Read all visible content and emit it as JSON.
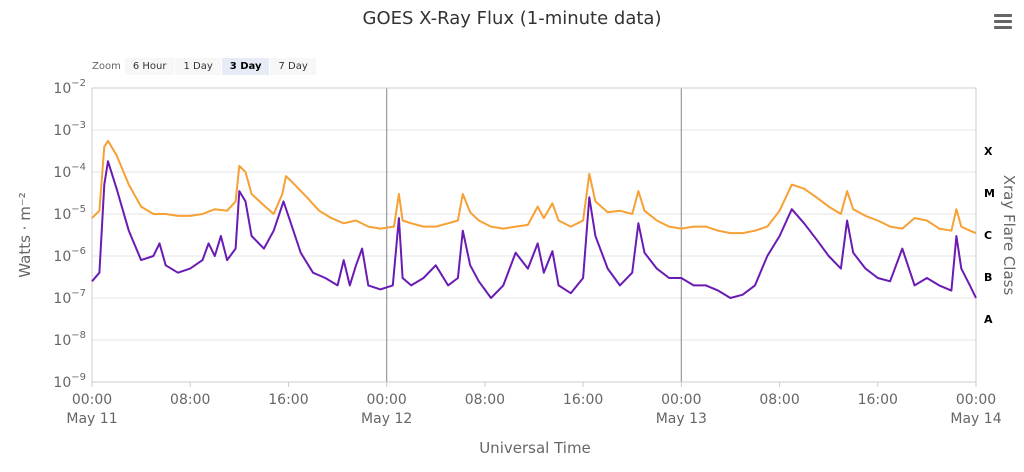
{
  "chart_data": {
    "type": "line",
    "title": "GOES X-Ray Flux (1-minute data)",
    "xlabel": "Universal Time",
    "ylabel": "Watts · m⁻²",
    "y2label": "Xray Flare Class",
    "yscale": "log",
    "ylim": [
      1e-09,
      0.01
    ],
    "xlim_hours": [
      0,
      72
    ],
    "x_ticks": [
      {
        "h": 0,
        "line1": "00:00",
        "line2": "May 11"
      },
      {
        "h": 8,
        "line1": "08:00",
        "line2": ""
      },
      {
        "h": 16,
        "line1": "16:00",
        "line2": ""
      },
      {
        "h": 24,
        "line1": "00:00",
        "line2": "May 12"
      },
      {
        "h": 32,
        "line1": "08:00",
        "line2": ""
      },
      {
        "h": 40,
        "line1": "16:00",
        "line2": ""
      },
      {
        "h": 48,
        "line1": "00:00",
        "line2": "May 13"
      },
      {
        "h": 56,
        "line1": "08:00",
        "line2": ""
      },
      {
        "h": 64,
        "line1": "16:00",
        "line2": ""
      },
      {
        "h": 72,
        "line1": "00:00",
        "line2": "May 14"
      }
    ],
    "y_ticks": [
      {
        "exp": -9,
        "label": "10",
        "sup": "−9"
      },
      {
        "exp": -8,
        "label": "10",
        "sup": "−8"
      },
      {
        "exp": -7,
        "label": "10",
        "sup": "−7"
      },
      {
        "exp": -6,
        "label": "10",
        "sup": "−6"
      },
      {
        "exp": -5,
        "label": "10",
        "sup": "−5"
      },
      {
        "exp": -4,
        "label": "10",
        "sup": "−4"
      },
      {
        "exp": -3,
        "label": "10",
        "sup": "−3"
      },
      {
        "exp": -2,
        "label": "10",
        "sup": "−2"
      }
    ],
    "flare_classes": [
      {
        "label": "X",
        "exp": -4
      },
      {
        "label": "M",
        "exp": -5
      },
      {
        "label": "C",
        "exp": -6
      },
      {
        "label": "B",
        "exp": -7
      },
      {
        "label": "A",
        "exp": -8
      }
    ],
    "series": [
      {
        "color": "#f7a035",
        "points": [
          [
            0,
            8e-06
          ],
          [
            0.6,
            1.2e-05
          ],
          [
            1,
            0.0004
          ],
          [
            1.3,
            0.00055
          ],
          [
            2,
            0.00025
          ],
          [
            3,
            5e-05
          ],
          [
            4,
            1.5e-05
          ],
          [
            5,
            1e-05
          ],
          [
            6,
            1e-05
          ],
          [
            7,
            9e-06
          ],
          [
            8,
            9e-06
          ],
          [
            9,
            1e-05
          ],
          [
            10,
            1.3e-05
          ],
          [
            11,
            1.2e-05
          ],
          [
            11.7,
            2e-05
          ],
          [
            12,
            0.00014
          ],
          [
            12.5,
            0.0001
          ],
          [
            13,
            3e-05
          ],
          [
            14,
            1.6e-05
          ],
          [
            14.8,
            1e-05
          ],
          [
            15.5,
            3e-05
          ],
          [
            15.8,
            8e-05
          ],
          [
            16.5,
            5e-05
          ],
          [
            17.5,
            2.5e-05
          ],
          [
            18.5,
            1.2e-05
          ],
          [
            19.5,
            8e-06
          ],
          [
            20.5,
            6e-06
          ],
          [
            21.5,
            7e-06
          ],
          [
            22.5,
            5e-06
          ],
          [
            23.5,
            4.5e-06
          ],
          [
            24.6,
            5e-06
          ],
          [
            25,
            3e-05
          ],
          [
            25.3,
            7e-06
          ],
          [
            26,
            6e-06
          ],
          [
            27,
            5e-06
          ],
          [
            28,
            5e-06
          ],
          [
            29,
            6e-06
          ],
          [
            29.8,
            7e-06
          ],
          [
            30.2,
            3e-05
          ],
          [
            30.8,
            1.1e-05
          ],
          [
            31.5,
            7e-06
          ],
          [
            32.5,
            5e-06
          ],
          [
            33.5,
            4.5e-06
          ],
          [
            34.5,
            5e-06
          ],
          [
            35.5,
            5.5e-06
          ],
          [
            36.3,
            1.5e-05
          ],
          [
            36.8,
            8e-06
          ],
          [
            37.5,
            1.8e-05
          ],
          [
            38,
            7e-06
          ],
          [
            39,
            5e-06
          ],
          [
            40,
            7e-06
          ],
          [
            40.5,
            9e-05
          ],
          [
            41,
            2e-05
          ],
          [
            42,
            1.1e-05
          ],
          [
            43,
            1.2e-05
          ],
          [
            44,
            1e-05
          ],
          [
            44.5,
            3.5e-05
          ],
          [
            45,
            1.2e-05
          ],
          [
            46,
            7e-06
          ],
          [
            47,
            5e-06
          ],
          [
            48,
            4.5e-06
          ],
          [
            49,
            5e-06
          ],
          [
            50,
            5e-06
          ],
          [
            51,
            4e-06
          ],
          [
            52,
            3.5e-06
          ],
          [
            53,
            3.5e-06
          ],
          [
            54,
            4e-06
          ],
          [
            55,
            5e-06
          ],
          [
            56,
            1.2e-05
          ],
          [
            57,
            5e-05
          ],
          [
            58,
            4e-05
          ],
          [
            59,
            2.5e-05
          ],
          [
            60,
            1.5e-05
          ],
          [
            61,
            1e-05
          ],
          [
            61.5,
            3.5e-05
          ],
          [
            62,
            1.3e-05
          ],
          [
            63,
            9e-06
          ],
          [
            64,
            7e-06
          ],
          [
            65,
            5e-06
          ],
          [
            66,
            4.5e-06
          ],
          [
            67,
            8e-06
          ],
          [
            68,
            7e-06
          ],
          [
            69,
            4.5e-06
          ],
          [
            70,
            4e-06
          ],
          [
            70.4,
            1.3e-05
          ],
          [
            70.8,
            5e-06
          ],
          [
            71.5,
            4e-06
          ],
          [
            72,
            3.5e-06
          ]
        ]
      },
      {
        "color": "#6a1bb3",
        "points": [
          [
            0,
            2.5e-07
          ],
          [
            0.6,
            4e-07
          ],
          [
            1,
            5e-05
          ],
          [
            1.3,
            0.00018
          ],
          [
            2,
            4e-05
          ],
          [
            3,
            4e-06
          ],
          [
            4,
            8e-07
          ],
          [
            5,
            1e-06
          ],
          [
            5.5,
            2e-06
          ],
          [
            6,
            6e-07
          ],
          [
            7,
            4e-07
          ],
          [
            8,
            5e-07
          ],
          [
            9,
            8e-07
          ],
          [
            9.5,
            2e-06
          ],
          [
            10,
            1e-06
          ],
          [
            10.5,
            3e-06
          ],
          [
            11,
            8e-07
          ],
          [
            11.7,
            1.5e-06
          ],
          [
            12,
            3.5e-05
          ],
          [
            12.5,
            2e-05
          ],
          [
            13,
            3e-06
          ],
          [
            14,
            1.5e-06
          ],
          [
            14.8,
            4e-06
          ],
          [
            15.6,
            2e-05
          ],
          [
            16.2,
            6e-06
          ],
          [
            17,
            1.2e-06
          ],
          [
            18,
            4e-07
          ],
          [
            19,
            3e-07
          ],
          [
            20,
            2e-07
          ],
          [
            20.5,
            8e-07
          ],
          [
            21,
            2e-07
          ],
          [
            21.5,
            6e-07
          ],
          [
            22,
            1.5e-06
          ],
          [
            22.5,
            2e-07
          ],
          [
            23.5,
            1.6e-07
          ],
          [
            24.5,
            2e-07
          ],
          [
            25,
            8e-06
          ],
          [
            25.3,
            3e-07
          ],
          [
            26,
            2e-07
          ],
          [
            27,
            3e-07
          ],
          [
            28,
            6e-07
          ],
          [
            29,
            2e-07
          ],
          [
            29.8,
            3e-07
          ],
          [
            30.2,
            4e-06
          ],
          [
            30.8,
            6e-07
          ],
          [
            31.5,
            2.5e-07
          ],
          [
            32.5,
            1e-07
          ],
          [
            33.5,
            2e-07
          ],
          [
            34.5,
            1.2e-06
          ],
          [
            35.5,
            5e-07
          ],
          [
            36.3,
            2e-06
          ],
          [
            36.8,
            4e-07
          ],
          [
            37.5,
            1.3e-06
          ],
          [
            38,
            2e-07
          ],
          [
            39,
            1.3e-07
          ],
          [
            40,
            3e-07
          ],
          [
            40.5,
            2.5e-05
          ],
          [
            41,
            3e-06
          ],
          [
            42,
            5e-07
          ],
          [
            43,
            2e-07
          ],
          [
            44,
            4e-07
          ],
          [
            44.5,
            6e-06
          ],
          [
            45,
            1.2e-06
          ],
          [
            46,
            5e-07
          ],
          [
            47,
            3e-07
          ],
          [
            48,
            3e-07
          ],
          [
            49,
            2e-07
          ],
          [
            50,
            2e-07
          ],
          [
            51,
            1.5e-07
          ],
          [
            52,
            1e-07
          ],
          [
            53,
            1.2e-07
          ],
          [
            54,
            2e-07
          ],
          [
            55,
            1e-06
          ],
          [
            56,
            3e-06
          ],
          [
            57,
            1.3e-05
          ],
          [
            58,
            6e-06
          ],
          [
            59,
            2.5e-06
          ],
          [
            60,
            1e-06
          ],
          [
            61,
            5e-07
          ],
          [
            61.5,
            7e-06
          ],
          [
            62,
            1.2e-06
          ],
          [
            63,
            5e-07
          ],
          [
            64,
            3e-07
          ],
          [
            65,
            2.5e-07
          ],
          [
            66,
            1.5e-06
          ],
          [
            67,
            2e-07
          ],
          [
            68,
            3e-07
          ],
          [
            69,
            2e-07
          ],
          [
            70,
            1.5e-07
          ],
          [
            70.4,
            3e-06
          ],
          [
            70.8,
            5e-07
          ],
          [
            71.5,
            2e-07
          ],
          [
            72,
            1e-07
          ]
        ]
      }
    ]
  },
  "zoom": {
    "label": "Zoom",
    "buttons": [
      "6 Hour",
      "1 Day",
      "3 Day",
      "7 Day"
    ],
    "selected": 2
  }
}
